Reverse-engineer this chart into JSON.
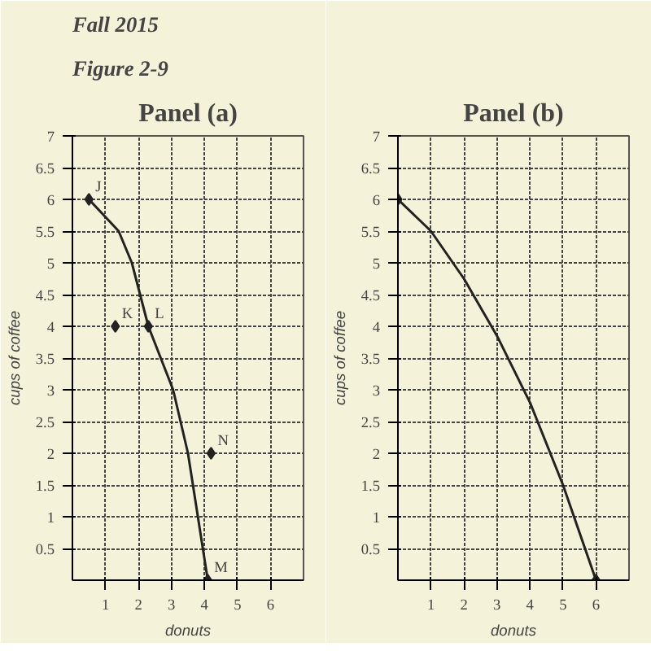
{
  "chart_data": [
    {
      "type": "line",
      "title": "Panel (a)",
      "annotations": [
        "Fall 2015",
        "Figure 2-9",
        {
          "text": "J",
          "x": 0.5,
          "y": 6
        },
        {
          "text": "K",
          "x": 1.3,
          "y": 4
        },
        {
          "text": "L",
          "x": 2.3,
          "y": 4
        },
        {
          "text": "N",
          "x": 4.2,
          "y": 2
        },
        {
          "text": "M",
          "x": 4.1,
          "y": 0
        }
      ],
      "xlabel": "donuts",
      "ylabel": "cups of coffee",
      "xlim": [
        0,
        7
      ],
      "ylim": [
        0,
        7
      ],
      "xticks": [
        1,
        2,
        3,
        4,
        5,
        6
      ],
      "yticks": [
        0.5,
        1,
        1.5,
        2,
        2.5,
        3,
        3.5,
        4,
        4.5,
        5,
        5.5,
        6,
        6.5,
        7
      ],
      "grid": true,
      "line_style": "solid",
      "series": [
        {
          "color": "#222222",
          "x": [
            0.5,
            1.4,
            1.8,
            2.3,
            3.05,
            3.5,
            3.8,
            4.1
          ],
          "values": [
            6,
            5.5,
            5,
            4,
            3,
            2,
            1,
            0
          ]
        },
        {
          "type": "scatter",
          "color": "#222222",
          "marker": "diamond",
          "x": [
            0.5,
            1.3,
            2.3,
            4.2,
            4.1
          ],
          "values": [
            6,
            4,
            4,
            2,
            0
          ]
        }
      ]
    },
    {
      "type": "line",
      "title": "Panel (b)",
      "xlabel": "donuts",
      "ylabel": "cups of coffee",
      "xlim": [
        0,
        7
      ],
      "ylim": [
        0,
        7
      ],
      "xticks": [
        1,
        2,
        3,
        4,
        5,
        6
      ],
      "yticks": [
        0.5,
        1,
        1.5,
        2,
        2.5,
        3,
        3.5,
        4,
        4.5,
        5,
        5.5,
        6,
        6.5,
        7
      ],
      "grid": true,
      "line_style": "solid",
      "series": [
        {
          "color": "#222222",
          "x": [
            0,
            1,
            2,
            3,
            4,
            5,
            6
          ],
          "values": [
            6,
            5.5,
            4.75,
            3.85,
            2.8,
            1.5,
            0
          ]
        },
        {
          "type": "scatter",
          "color": "#222222",
          "marker": "diamond",
          "x": [
            0,
            6
          ],
          "values": [
            6,
            0
          ]
        }
      ]
    }
  ]
}
